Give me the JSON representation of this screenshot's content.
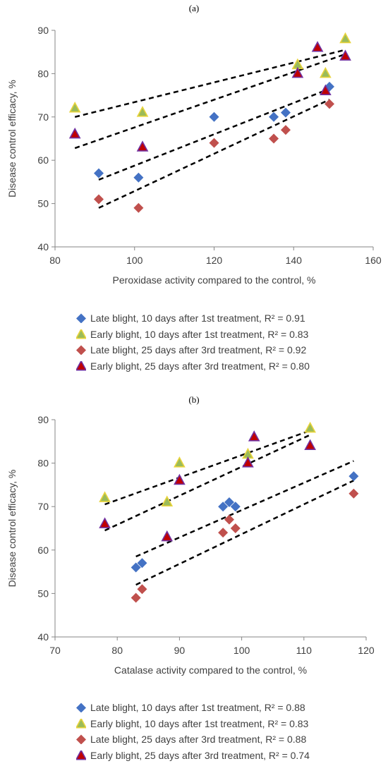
{
  "chart_data": [
    {
      "type": "scatter",
      "panel_label": "(a)",
      "xlabel": "Peroxidase activity compared to the control, %",
      "ylabel": "Disease control efficacy, %",
      "xlim": [
        80,
        160
      ],
      "ylim": [
        40,
        90
      ],
      "xticks": [
        80,
        100,
        120,
        140,
        160
      ],
      "yticks": [
        40,
        50,
        60,
        70,
        80,
        90
      ],
      "grid": false,
      "legend_placement": "bottom",
      "series": [
        {
          "name": "Late blight, 10 days after 1st treatment, R² = 0.91",
          "marker": "diamond",
          "color": "#4472C4",
          "x": [
            91,
            101,
            120,
            135,
            138,
            149
          ],
          "y": [
            57,
            56,
            70,
            70,
            71,
            77
          ],
          "trend": [
            [
              91,
              55.5
            ],
            [
              149,
              76.5
            ]
          ]
        },
        {
          "name": "Early blight, 10 days after 1st treatment, R² = 0.83",
          "marker": "triangle",
          "color": "#9BBB59",
          "x": [
            85,
            102,
            141,
            148,
            153
          ],
          "y": [
            72,
            71,
            82,
            80,
            88
          ],
          "trend": [
            [
              85,
              70
            ],
            [
              153,
              85.5
            ]
          ]
        },
        {
          "name": "Late blight, 25 days after 3rd treatment, R² = 0.92",
          "marker": "diamond",
          "color": "#C0504D",
          "x": [
            91,
            101,
            120,
            135,
            138,
            149
          ],
          "y": [
            51,
            49,
            64,
            65,
            67,
            73
          ],
          "trend": [
            [
              91,
              49
            ],
            [
              149,
              74
            ]
          ]
        },
        {
          "name": "Early blight, 25 days after 3rd treatment, R² = 0.80",
          "marker": "triangle",
          "color": "#C00000",
          "x": [
            85,
            102,
            141,
            146,
            148,
            153
          ],
          "y": [
            66,
            63,
            80,
            86,
            76,
            84
          ],
          "trend": [
            [
              85,
              62.8
            ],
            [
              153,
              84.5
            ]
          ]
        }
      ]
    },
    {
      "type": "scatter",
      "panel_label": "(b)",
      "xlabel": "Catalase activity compared to the control, %",
      "ylabel": "Disease control efficacy, %",
      "xlim": [
        70,
        120
      ],
      "ylim": [
        40,
        90
      ],
      "xticks": [
        70,
        80,
        90,
        100,
        110,
        120
      ],
      "yticks": [
        40,
        50,
        60,
        70,
        80,
        90
      ],
      "grid": false,
      "legend_placement": "bottom",
      "series": [
        {
          "name": "Late blight, 10 days after 1st treatment, R² = 0.88",
          "marker": "diamond",
          "color": "#4472C4",
          "x": [
            83,
            84,
            97,
            98,
            99,
            118
          ],
          "y": [
            56,
            57,
            70,
            71,
            70,
            77
          ],
          "trend": [
            [
              83,
              58.5
            ],
            [
              118,
              80.5
            ]
          ]
        },
        {
          "name": "Early blight, 10 days after 1st treatment, R² = 0.83",
          "marker": "triangle",
          "color": "#9BBB59",
          "x": [
            78,
            88,
            90,
            101,
            111
          ],
          "y": [
            72,
            71,
            80,
            82,
            88
          ],
          "trend": [
            [
              78,
              70.5
            ],
            [
              111,
              87.5
            ]
          ]
        },
        {
          "name": "Late blight, 25 days after 3rd treatment, R² = 0.88",
          "marker": "diamond",
          "color": "#C0504D",
          "x": [
            83,
            84,
            97,
            98,
            99,
            118
          ],
          "y": [
            49,
            51,
            64,
            67,
            65,
            73
          ],
          "trend": [
            [
              83,
              52
            ],
            [
              118,
              76
            ]
          ]
        },
        {
          "name": "Early blight, 25 days after 3rd treatment, R² = 0.74",
          "marker": "triangle",
          "color": "#C00000",
          "x": [
            78,
            88,
            90,
            101,
            102,
            111
          ],
          "y": [
            66,
            63,
            76,
            80,
            86,
            84
          ],
          "trend": [
            [
              78,
              64.5
            ],
            [
              111,
              86.5
            ]
          ]
        }
      ]
    }
  ]
}
